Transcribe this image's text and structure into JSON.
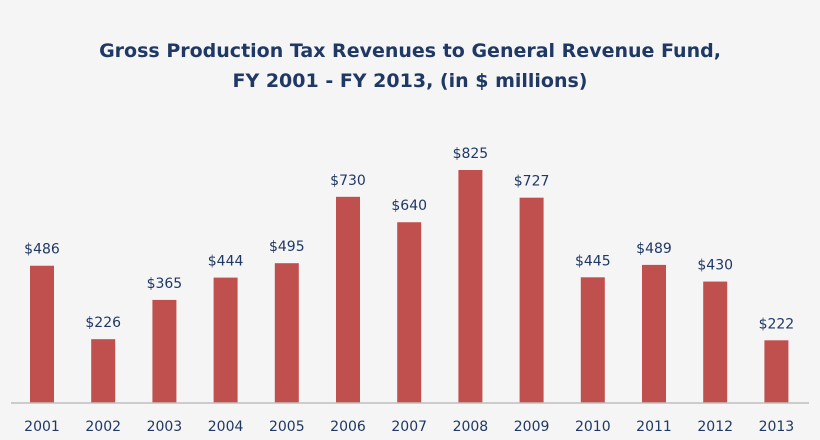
{
  "chart_data": {
    "type": "bar",
    "title": "Gross Production Tax Revenues to General Revenue Fund,",
    "subtitle": "FY 2001 - FY 2013, (in $ millions)",
    "xlabel": "",
    "ylabel": "",
    "categories": [
      "2001",
      "2002",
      "2003",
      "2004",
      "2005",
      "2006",
      "2007",
      "2008",
      "2009",
      "2010",
      "2011",
      "2012",
      "2013"
    ],
    "values": [
      486,
      226,
      365,
      444,
      495,
      730,
      640,
      825,
      727,
      445,
      489,
      430,
      222
    ],
    "data_labels": [
      "$486",
      "$226",
      "$365",
      "$444",
      "$495",
      "$730",
      "$640",
      "$825",
      "$727",
      "$445",
      "$489",
      "$430",
      "$222"
    ],
    "ylim": [
      0,
      825
    ],
    "grid": false,
    "legend": "none",
    "colors": {
      "bar": "#c0504d",
      "text": "#1f3864",
      "axis": "#bfbfbf",
      "background": "#f5f5f5"
    }
  }
}
